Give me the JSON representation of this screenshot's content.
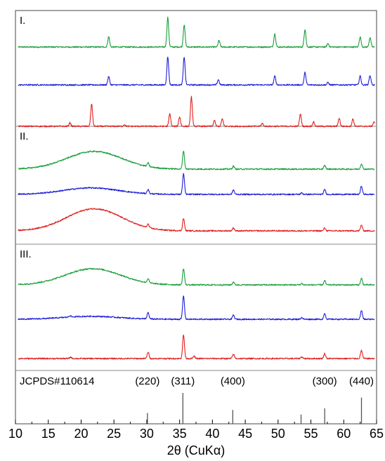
{
  "chart_data": {
    "type": "line",
    "xlabel": "2θ (CuKα)",
    "ylabel": "",
    "xlim": [
      10,
      65
    ],
    "xticks": [
      10,
      15,
      20,
      25,
      30,
      35,
      40,
      45,
      50,
      55,
      60,
      65
    ],
    "grid": false,
    "panels": [
      {
        "label": "I.",
        "traces": [
          {
            "color": "#1a9e3a",
            "order": 1,
            "hump": null,
            "peaks": [
              [
                24.2,
                0.35
              ],
              [
                33.2,
                1.0
              ],
              [
                35.7,
                0.75
              ],
              [
                41.0,
                0.22
              ],
              [
                49.5,
                0.45
              ],
              [
                54.1,
                0.6
              ],
              [
                57.6,
                0.12
              ],
              [
                62.5,
                0.35
              ],
              [
                64.0,
                0.32
              ]
            ]
          },
          {
            "color": "#1f1fd6",
            "order": 2,
            "hump": null,
            "peaks": [
              [
                24.2,
                0.28
              ],
              [
                33.2,
                0.95
              ],
              [
                35.7,
                0.95
              ],
              [
                40.9,
                0.18
              ],
              [
                49.5,
                0.3
              ],
              [
                54.1,
                0.42
              ],
              [
                57.6,
                0.08
              ],
              [
                62.5,
                0.3
              ],
              [
                64.0,
                0.32
              ]
            ]
          },
          {
            "color": "#e02020",
            "order": 3,
            "hump": null,
            "peaks": [
              [
                18.3,
                0.12
              ],
              [
                21.6,
                0.75
              ],
              [
                26.6,
                0.06
              ],
              [
                33.5,
                0.42
              ],
              [
                35.0,
                0.32
              ],
              [
                36.8,
                1.0
              ],
              [
                40.3,
                0.2
              ],
              [
                41.5,
                0.25
              ],
              [
                47.6,
                0.1
              ],
              [
                53.4,
                0.42
              ],
              [
                55.4,
                0.15
              ],
              [
                59.3,
                0.28
              ],
              [
                61.4,
                0.25
              ],
              [
                64.6,
                0.15
              ]
            ]
          }
        ]
      },
      {
        "label": "II.",
        "traces": [
          {
            "color": "#1a9e3a",
            "order": 1,
            "hump": [
              22.0,
              0.6
            ],
            "peaks": [
              [
                30.2,
                0.12
              ],
              [
                35.6,
                0.62
              ],
              [
                43.2,
                0.1
              ],
              [
                57.1,
                0.12
              ],
              [
                62.7,
                0.18
              ]
            ]
          },
          {
            "color": "#1f1fd6",
            "order": 2,
            "hump": [
              21.5,
              0.22
            ],
            "peaks": [
              [
                30.2,
                0.14
              ],
              [
                35.6,
                0.7
              ],
              [
                43.2,
                0.15
              ],
              [
                53.6,
                0.05
              ],
              [
                57.1,
                0.17
              ],
              [
                62.7,
                0.28
              ]
            ]
          },
          {
            "color": "#e02020",
            "order": 3,
            "hump": [
              22.0,
              0.75
            ],
            "peaks": [
              [
                30.2,
                0.12
              ],
              [
                35.6,
                0.42
              ],
              [
                43.2,
                0.1
              ],
              [
                57.1,
                0.1
              ],
              [
                62.7,
                0.2
              ]
            ]
          }
        ]
      },
      {
        "label": "III.",
        "traces": [
          {
            "color": "#1a9e3a",
            "order": 1,
            "hump": [
              21.8,
              0.55
            ],
            "peaks": [
              [
                30.2,
                0.14
              ],
              [
                35.6,
                0.55
              ],
              [
                43.2,
                0.1
              ],
              [
                53.6,
                0.05
              ],
              [
                57.1,
                0.14
              ],
              [
                62.7,
                0.22
              ]
            ]
          },
          {
            "color": "#1f1fd6",
            "order": 2,
            "hump": [
              21.5,
              0.1
            ],
            "peaks": [
              [
                18.3,
                0.05
              ],
              [
                30.2,
                0.22
              ],
              [
                35.6,
                0.8
              ],
              [
                43.2,
                0.14
              ],
              [
                53.6,
                0.06
              ],
              [
                57.1,
                0.2
              ],
              [
                62.7,
                0.3
              ]
            ]
          },
          {
            "color": "#e02020",
            "order": 3,
            "hump": null,
            "peaks": [
              [
                18.4,
                0.05
              ],
              [
                30.2,
                0.22
              ],
              [
                35.6,
                0.8
              ],
              [
                37.2,
                0.08
              ],
              [
                43.2,
                0.15
              ],
              [
                53.6,
                0.06
              ],
              [
                57.1,
                0.17
              ],
              [
                62.7,
                0.28
              ]
            ]
          }
        ]
      }
    ],
    "reference": {
      "label": "JCPDS#110614",
      "lines": [
        {
          "x": 30.1,
          "intensity": 0.35,
          "hkl": "(220)"
        },
        {
          "x": 35.5,
          "intensity": 1.0,
          "hkl": "(311)"
        },
        {
          "x": 43.1,
          "intensity": 0.45,
          "hkl": "(400)"
        },
        {
          "x": 53.5,
          "intensity": 0.3,
          "hkl": ""
        },
        {
          "x": 57.1,
          "intensity": 0.5,
          "hkl": "(300)"
        },
        {
          "x": 62.7,
          "intensity": 0.85,
          "hkl": "(440)"
        }
      ]
    }
  }
}
